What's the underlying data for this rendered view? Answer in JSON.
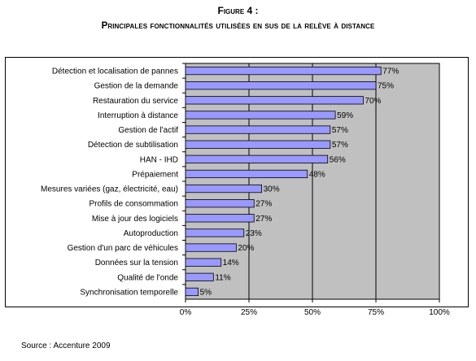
{
  "figure": {
    "label": "Figure 4 :",
    "title": "Principales fonctionnalités utilisées en sus de la relève à distance",
    "source": "Source : Accenture 2009"
  },
  "colors": {
    "plot_bg": "#c0c0c0",
    "bar_fill": "#9999ff",
    "bar_stroke": "#000000",
    "gridline": "#000000"
  },
  "chart_data": {
    "type": "bar",
    "orientation": "horizontal",
    "title": "Principales fonctionnalités utilisées en sus de la relève à distance",
    "xlabel": "",
    "ylabel": "",
    "xlim": [
      0,
      100
    ],
    "x_ticks": [
      "0%",
      "25%",
      "50%",
      "75%",
      "100%"
    ],
    "grid": true,
    "categories": [
      "Détection et localisation de pannes",
      "Gestion de la demande",
      "Restauration du service",
      "Interruption à distance",
      "Gestion de l'actif",
      "Détection de subtilisation",
      "HAN - IHD",
      "Prépaiement",
      "Mesures variées (gaz, électricité, eau)",
      "Profils de consommation",
      "Mise à jour des logiciels",
      "Autoproduction",
      "Gestion d'un parc de véhicules",
      "Données sur la tension",
      "Qualité de l'onde",
      "Synchronisation temporelle"
    ],
    "values": [
      77,
      75,
      70,
      59,
      57,
      57,
      56,
      48,
      30,
      27,
      27,
      23,
      20,
      14,
      11,
      5
    ],
    "data_labels": [
      "77%",
      "75%",
      "70%",
      "59%",
      "57%",
      "57%",
      "56%",
      "48%",
      "30%",
      "27%",
      "27%",
      "23%",
      "20%",
      "14%",
      "11%",
      "5%"
    ]
  }
}
